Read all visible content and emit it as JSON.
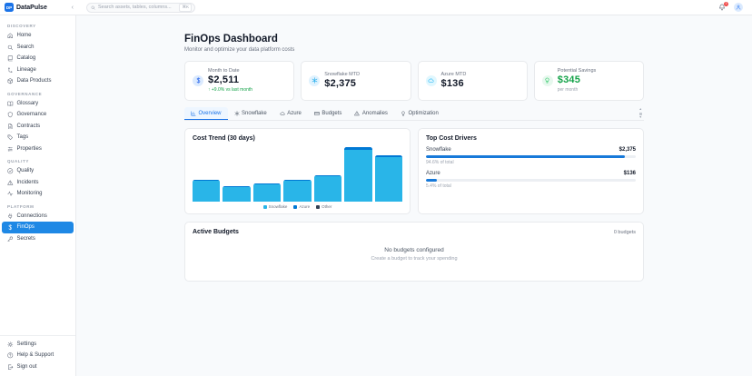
{
  "header": {
    "logo_text": "DP",
    "brand": "DataPulse",
    "search": {
      "placeholder": "Search assets, tables, columns...",
      "shortcut": "⌘K"
    },
    "notification_count": "3"
  },
  "sidebar": {
    "sections": [
      {
        "label": "DISCOVERY",
        "items": [
          {
            "icon": "home",
            "label": "Home"
          },
          {
            "icon": "search",
            "label": "Search"
          },
          {
            "icon": "catalog",
            "label": "Catalog"
          },
          {
            "icon": "lineage",
            "label": "Lineage"
          },
          {
            "icon": "box",
            "label": "Data Products"
          }
        ]
      },
      {
        "label": "GOVERNANCE",
        "items": [
          {
            "icon": "book",
            "label": "Glossary"
          },
          {
            "icon": "shield",
            "label": "Governance"
          },
          {
            "icon": "file",
            "label": "Contracts"
          },
          {
            "icon": "tag",
            "label": "Tags"
          },
          {
            "icon": "sliders",
            "label": "Properties"
          }
        ]
      },
      {
        "label": "QUALITY",
        "items": [
          {
            "icon": "check",
            "label": "Quality"
          },
          {
            "icon": "alert",
            "label": "Incidents"
          },
          {
            "icon": "activity",
            "label": "Monitoring"
          }
        ]
      },
      {
        "label": "PLATFORM",
        "items": [
          {
            "icon": "plug",
            "label": "Connections"
          },
          {
            "icon": "dollar",
            "label": "FinOps",
            "active": true
          },
          {
            "icon": "key",
            "label": "Secrets"
          }
        ]
      }
    ],
    "footer_items": [
      {
        "icon": "gear",
        "label": "Settings"
      },
      {
        "icon": "help",
        "label": "Help & Support"
      },
      {
        "icon": "logout",
        "label": "Sign out"
      }
    ]
  },
  "page": {
    "title": "FinOps Dashboard",
    "subtitle": "Monitor and optimize your data platform costs"
  },
  "kpis": [
    {
      "icon": "dollar",
      "icon_bg": "#dbeafe",
      "icon_color": "#2563eb",
      "label": "Month to Date",
      "value": "$2,511",
      "change": "↑ +9.0% vs last month",
      "change_color": "#16a34a"
    },
    {
      "icon": "snowflake",
      "icon_bg": "#e0f2fe",
      "icon_color": "#0ea5e9",
      "label": "Snowflake MTD",
      "value": "$2,375"
    },
    {
      "icon": "cloud",
      "icon_bg": "#e0f7fe",
      "icon_color": "#38bdf8",
      "label": "Azure MTD",
      "value": "$136"
    },
    {
      "icon": "bulb",
      "icon_bg": "#e7f8ee",
      "icon_color": "#22c55e",
      "label": "Potential Savings",
      "value": "$345",
      "value_color": "#16a34a",
      "sub": "per month"
    }
  ],
  "tabs": [
    {
      "icon": "chart",
      "label": "Overview",
      "active": true
    },
    {
      "icon": "snowflake",
      "label": "Snowflake"
    },
    {
      "icon": "cloud",
      "label": "Azure"
    },
    {
      "icon": "card",
      "label": "Budgets"
    },
    {
      "icon": "alert",
      "label": "Anomalies"
    },
    {
      "icon": "bulb",
      "label": "Optimization"
    }
  ],
  "chart_data": {
    "type": "bar",
    "stacked": true,
    "title": "Cost Trend (30 days)",
    "categories": [
      "1",
      "2",
      "3",
      "4",
      "5",
      "6",
      "7"
    ],
    "axis": {
      "x_labels_visible": false,
      "y_labels_visible": false,
      "grid": false
    },
    "series": [
      {
        "name": "Snowflake",
        "color": "#29b5e8",
        "values": [
          254,
          177,
          210,
          254,
          309,
          630,
          541
        ]
      },
      {
        "name": "Azure",
        "color": "#0078d4",
        "values": [
          15,
          10,
          12,
          15,
          18,
          36,
          31
        ]
      },
      {
        "name": "Other",
        "color": "#334155",
        "values": [
          0,
          0,
          0,
          0,
          0,
          0,
          0
        ]
      }
    ],
    "legend": {
      "position": "bottom",
      "entries": [
        "Snowflake",
        "Azure",
        "Other"
      ]
    }
  },
  "cost_drivers": {
    "title": "Top Cost Drivers",
    "bar_color": "#1779d9",
    "rows": [
      {
        "name": "Snowflake",
        "amount": "$2,375",
        "pct": 94.6,
        "pct_label": "94.6% of total"
      },
      {
        "name": "Azure",
        "amount": "$136",
        "pct": 5.4,
        "pct_label": "5.4% of total"
      }
    ]
  },
  "budgets": {
    "title": "Active Budgets",
    "count_label": "0 budgets",
    "empty_title": "No budgets configured",
    "empty_subtitle": "Create a budget to track your spending"
  },
  "colors": {
    "accent": "#1a73e8",
    "sidebar_active": "#1e88e5",
    "positive": "#16a34a",
    "badge": "#ef4444"
  }
}
